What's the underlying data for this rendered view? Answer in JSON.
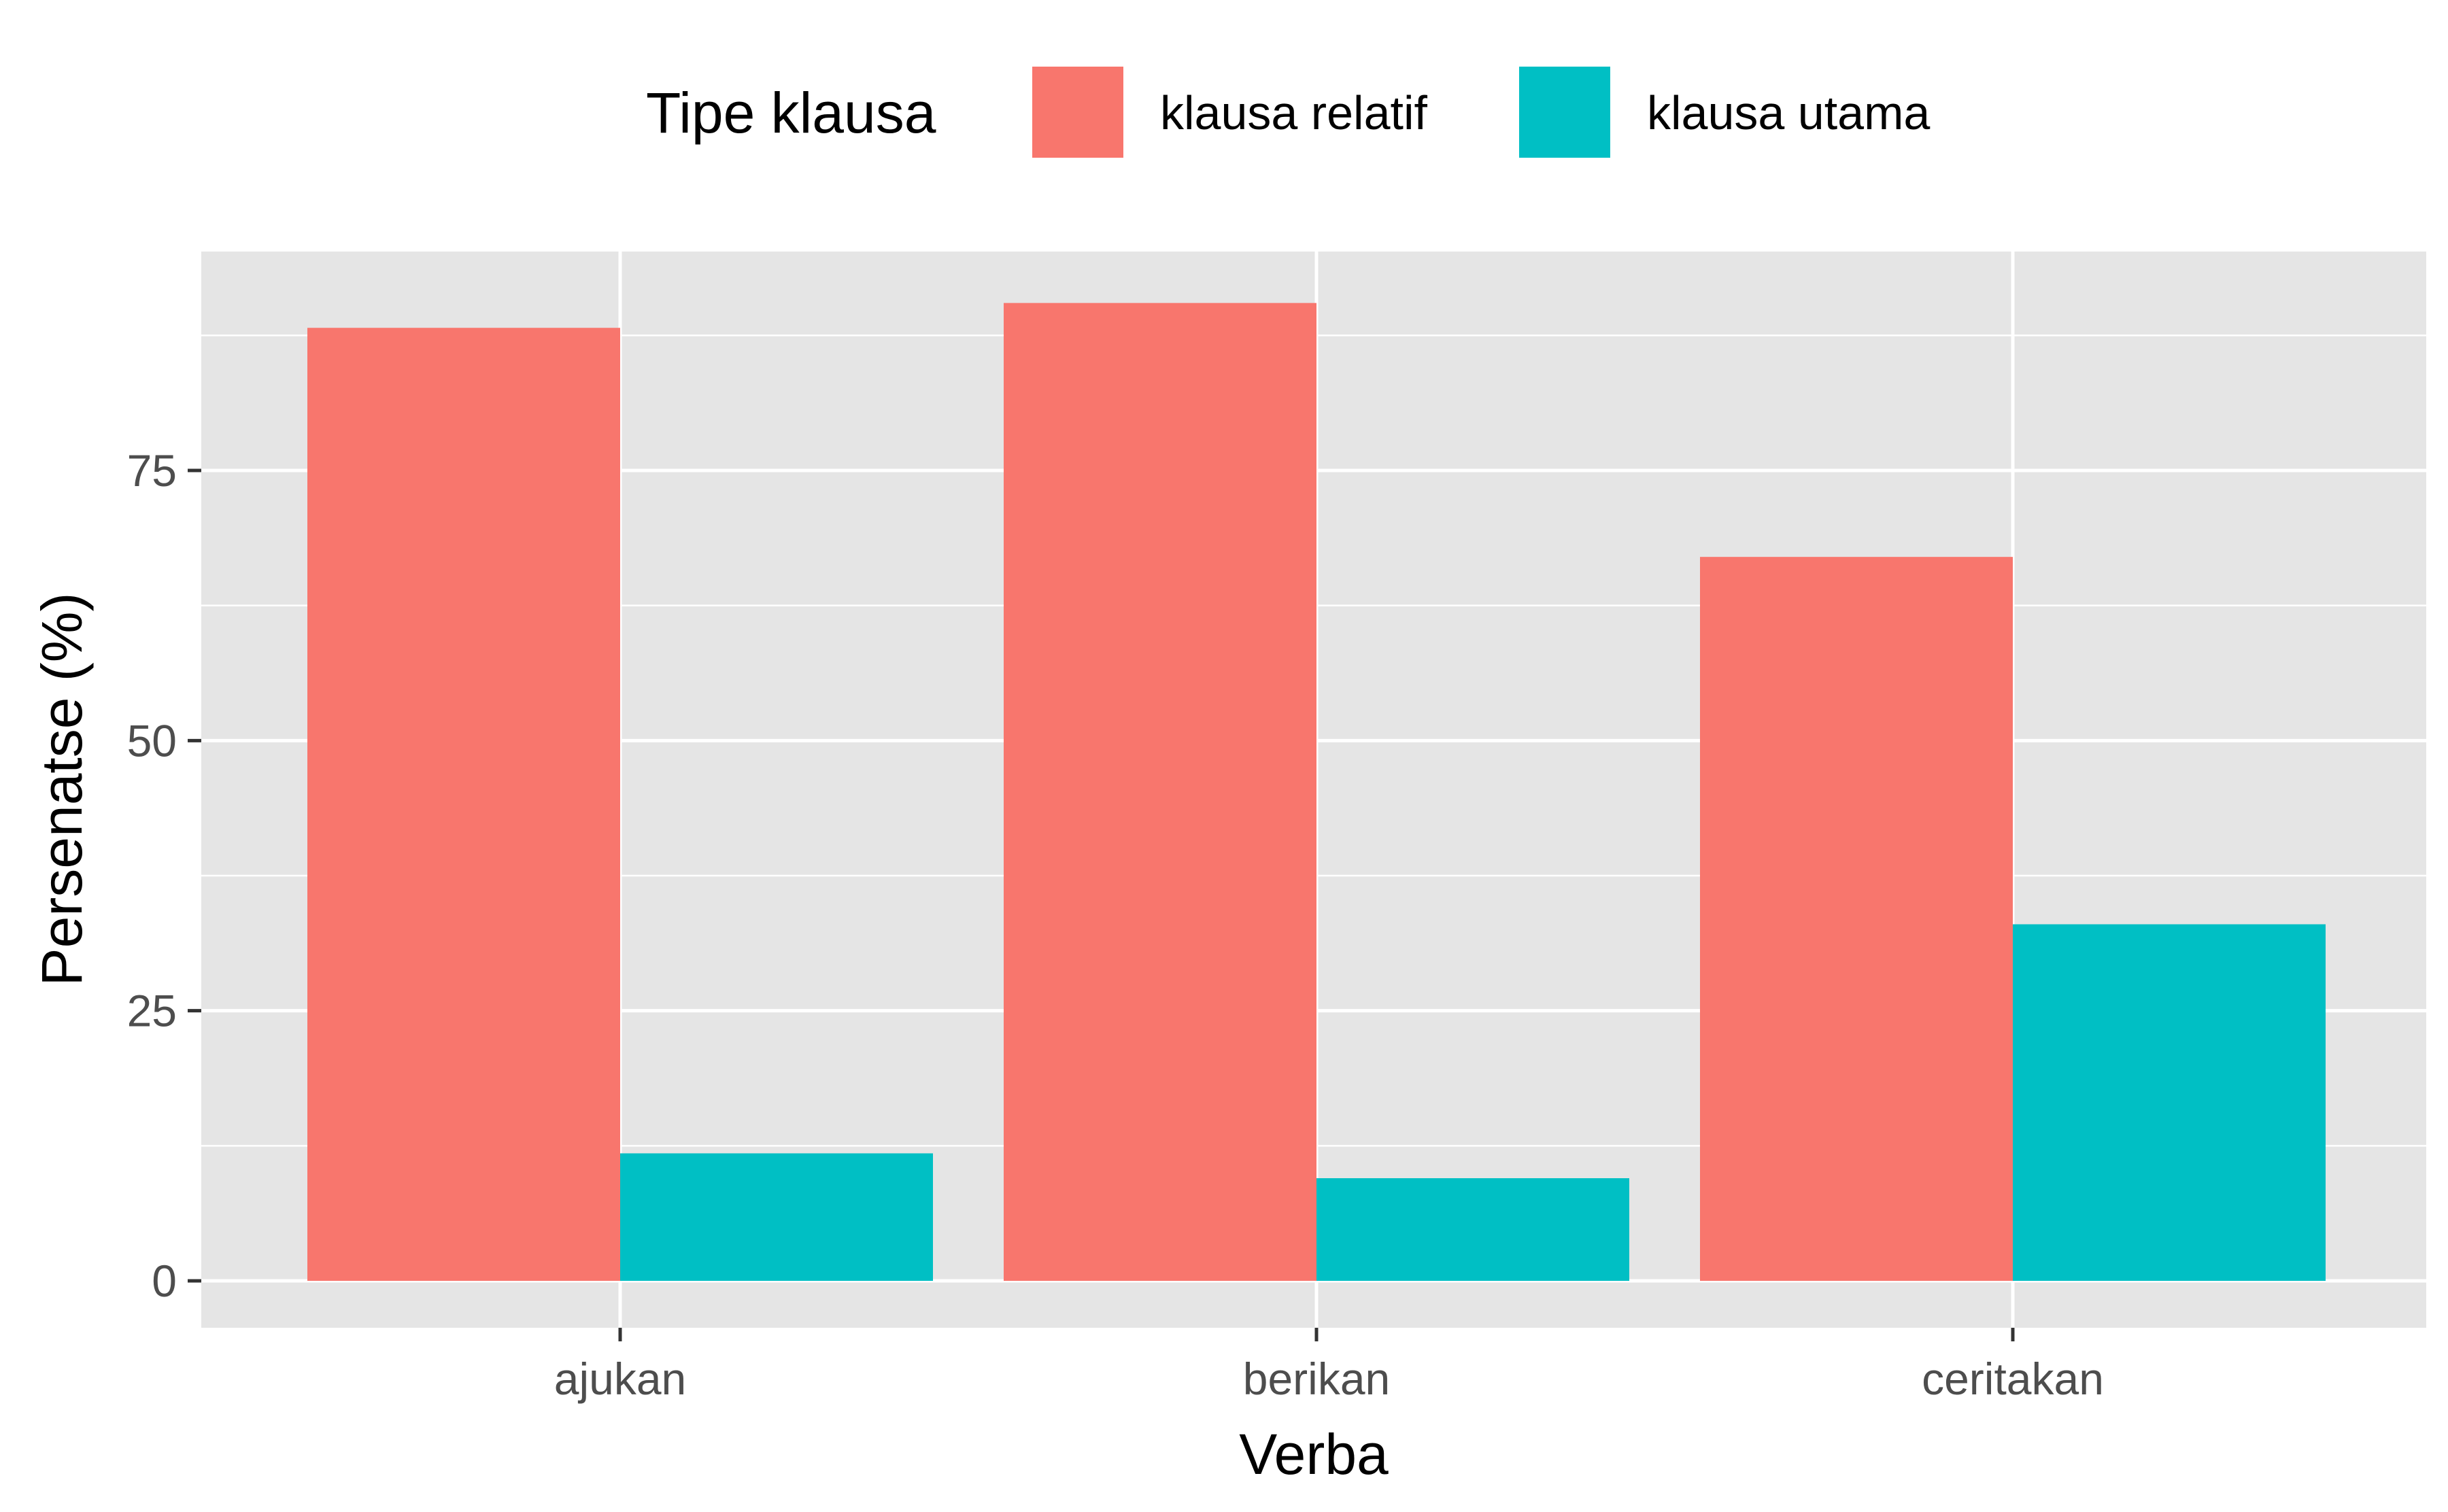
{
  "chart_data": {
    "type": "bar",
    "categories": [
      "ajukan",
      "berikan",
      "ceritakan"
    ],
    "series": [
      {
        "name": "klausa relatif",
        "values": [
          88.2,
          90.5,
          67.0
        ],
        "color": "#F8766D"
      },
      {
        "name": "klausa utama",
        "values": [
          11.8,
          9.5,
          33.0
        ],
        "color": "#00BFC4"
      }
    ],
    "xlabel": "Verba",
    "ylabel": "Persenatse (%)",
    "ylim": [
      0,
      95
    ],
    "yticks": [
      0,
      25,
      50,
      75
    ],
    "grid": true,
    "legend": {
      "title": "Tipe klausa",
      "position": "top"
    },
    "panel_background": "#E5E5E5",
    "grid_color": "#FFFFFF"
  }
}
